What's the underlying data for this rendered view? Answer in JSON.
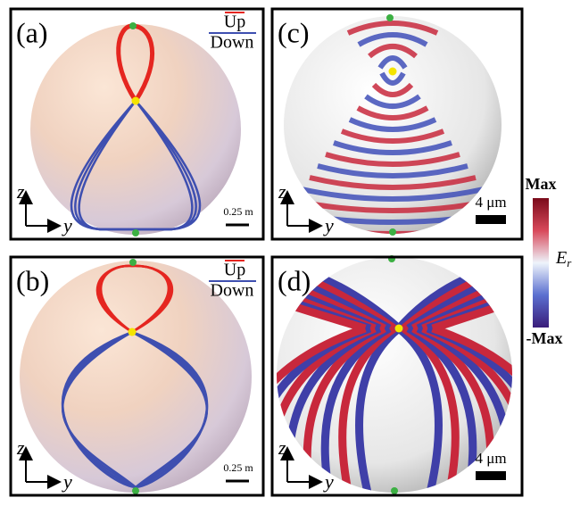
{
  "panels": [
    {
      "label": "(a)",
      "legend": [
        "Up",
        "Down"
      ],
      "axes": [
        "z",
        "y"
      ],
      "scale": "0.25 m"
    },
    {
      "label": "(b)",
      "legend": [
        "Up",
        "Down"
      ],
      "axes": [
        "z",
        "y"
      ],
      "scale": "0.25 m"
    },
    {
      "label": "(c)",
      "axes": [
        "z",
        "y"
      ],
      "scale": "4 μm"
    },
    {
      "label": "(d)",
      "axes": [
        "z",
        "y"
      ],
      "scale": "4 μm"
    }
  ],
  "colorbar": {
    "max": "Max",
    "symbol": "E",
    "subscript": "r",
    "min": "-Max"
  }
}
